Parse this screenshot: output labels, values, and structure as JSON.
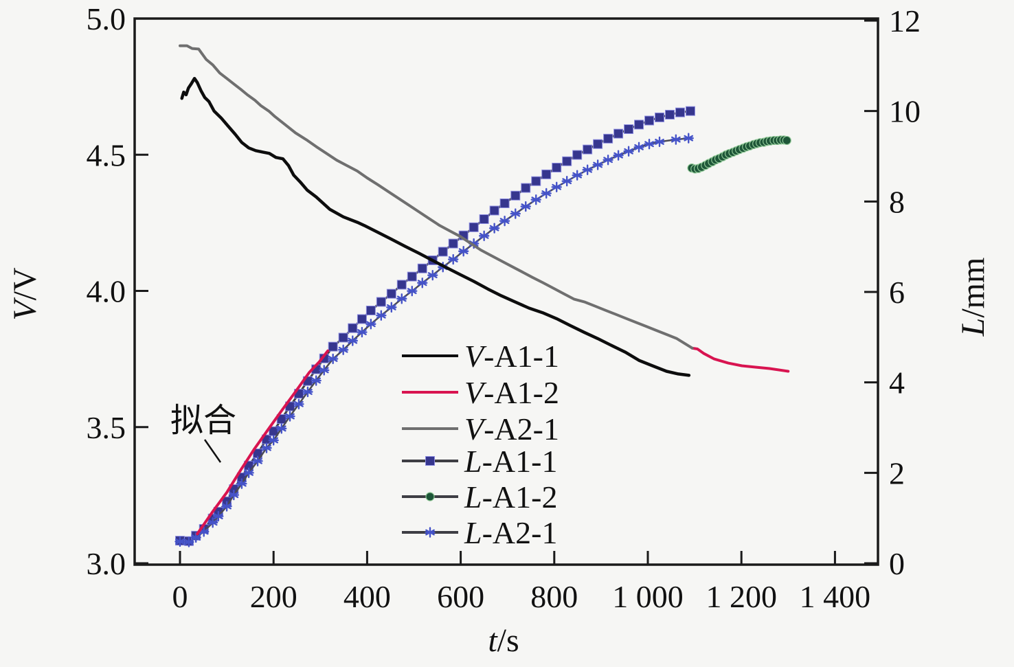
{
  "figure": {
    "background": "#f6f6f4",
    "frame_color": "#1a1a1a"
  },
  "chart_data": {
    "type": "line",
    "title": "",
    "x_axis": {
      "label_prefix": "t",
      "label_suffix": "/s",
      "range": [
        0,
        1400
      ],
      "tick_values": [
        0,
        200,
        400,
        600,
        800,
        1000,
        1200,
        1400
      ],
      "tick_labels": [
        "0",
        "200",
        "400",
        "600",
        "800",
        "1 000",
        "1 200",
        "1 400"
      ]
    },
    "y_axis_left": {
      "label_prefix": "V",
      "label_suffix": "/V",
      "range": [
        3.0,
        5.0
      ],
      "tick_values": [
        3.0,
        3.5,
        4.0,
        4.5,
        5.0
      ],
      "tick_labels": [
        "3.0",
        "3.5",
        "4.0",
        "4.5",
        "5.0"
      ]
    },
    "y_axis_right": {
      "label_prefix": "L",
      "label_suffix": "/mm",
      "range": [
        0,
        12
      ],
      "tick_values": [
        0,
        2,
        4,
        6,
        8,
        10,
        12
      ],
      "tick_labels": [
        "0",
        "2",
        "4",
        "6",
        "8",
        "10",
        "12"
      ]
    },
    "grid": false,
    "legend_position": "lower-center-inside",
    "annotation": {
      "text": "拟合",
      "points_to": "V-A1-2 linear fit segment"
    },
    "series": [
      {
        "name": "V-A1-1",
        "axis": "left",
        "color": "#0d0d0d",
        "marker": "none",
        "line_width": 4.5,
        "points": [
          [
            4,
            4.707
          ],
          [
            8,
            4.73
          ],
          [
            13,
            4.72
          ],
          [
            18,
            4.745
          ],
          [
            24,
            4.76
          ],
          [
            31,
            4.78
          ],
          [
            37,
            4.765
          ],
          [
            45,
            4.735
          ],
          [
            53,
            4.71
          ],
          [
            62,
            4.695
          ],
          [
            73,
            4.66
          ],
          [
            88,
            4.635
          ],
          [
            103,
            4.605
          ],
          [
            118,
            4.575
          ],
          [
            132,
            4.545
          ],
          [
            147,
            4.525
          ],
          [
            162,
            4.515
          ],
          [
            176,
            4.51
          ],
          [
            191,
            4.505
          ],
          [
            205,
            4.49
          ],
          [
            220,
            4.485
          ],
          [
            232,
            4.46
          ],
          [
            243,
            4.425
          ],
          [
            257,
            4.4
          ],
          [
            272,
            4.37
          ],
          [
            291,
            4.345
          ],
          [
            320,
            4.3
          ],
          [
            349,
            4.272
          ],
          [
            379,
            4.252
          ],
          [
            394,
            4.24
          ],
          [
            423,
            4.215
          ],
          [
            452,
            4.19
          ],
          [
            482,
            4.163
          ],
          [
            511,
            4.138
          ],
          [
            540,
            4.112
          ],
          [
            570,
            4.085
          ],
          [
            599,
            4.06
          ],
          [
            628,
            4.035
          ],
          [
            658,
            4.007
          ],
          [
            687,
            3.982
          ],
          [
            716,
            3.96
          ],
          [
            746,
            3.937
          ],
          [
            775,
            3.92
          ],
          [
            805,
            3.898
          ],
          [
            834,
            3.873
          ],
          [
            864,
            3.848
          ],
          [
            893,
            3.825
          ],
          [
            922,
            3.8
          ],
          [
            952,
            3.775
          ],
          [
            981,
            3.745
          ],
          [
            1010,
            3.725
          ],
          [
            1040,
            3.705
          ],
          [
            1065,
            3.695
          ],
          [
            1088,
            3.69
          ]
        ]
      },
      {
        "name": "V-A1-2",
        "axis": "left",
        "color": "#d81450",
        "marker": "none",
        "line_width": 4,
        "segments": [
          [
            [
              37,
              3.108
            ],
            [
              70,
              3.19
            ],
            [
              100,
              3.26
            ],
            [
              129,
              3.34
            ],
            [
              159,
              3.42
            ],
            [
              188,
              3.49
            ],
            [
              217,
              3.56
            ],
            [
              247,
              3.63
            ],
            [
              276,
              3.7
            ],
            [
              298,
              3.74
            ],
            [
              316,
              3.78
            ]
          ],
          [
            [
              1095,
              3.79
            ],
            [
              1106,
              3.787
            ],
            [
              1120,
              3.77
            ],
            [
              1142,
              3.75
            ],
            [
              1172,
              3.735
            ],
            [
              1201,
              3.725
            ],
            [
              1230,
              3.72
            ],
            [
              1260,
              3.715
            ],
            [
              1300,
              3.705
            ]
          ]
        ]
      },
      {
        "name": "V-A2-1",
        "axis": "left",
        "color": "#6f6f6f",
        "marker": "none",
        "line_width": 4,
        "points": [
          [
            0,
            4.9
          ],
          [
            15,
            4.9
          ],
          [
            26,
            4.89
          ],
          [
            40,
            4.888
          ],
          [
            56,
            4.85
          ],
          [
            70,
            4.83
          ],
          [
            85,
            4.8
          ],
          [
            100,
            4.78
          ],
          [
            115,
            4.76
          ],
          [
            130,
            4.74
          ],
          [
            144,
            4.72
          ],
          [
            160,
            4.7
          ],
          [
            173,
            4.68
          ],
          [
            190,
            4.66
          ],
          [
            203,
            4.64
          ],
          [
            225,
            4.61
          ],
          [
            247,
            4.58
          ],
          [
            270,
            4.555
          ],
          [
            291,
            4.53
          ],
          [
            313,
            4.505
          ],
          [
            335,
            4.48
          ],
          [
            357,
            4.46
          ],
          [
            379,
            4.44
          ],
          [
            400,
            4.415
          ],
          [
            423,
            4.39
          ],
          [
            445,
            4.365
          ],
          [
            467,
            4.34
          ],
          [
            489,
            4.315
          ],
          [
            511,
            4.29
          ],
          [
            533,
            4.265
          ],
          [
            555,
            4.24
          ],
          [
            577,
            4.22
          ],
          [
            599,
            4.2
          ],
          [
            621,
            4.175
          ],
          [
            643,
            4.15
          ],
          [
            665,
            4.13
          ],
          [
            687,
            4.11
          ],
          [
            709,
            4.09
          ],
          [
            731,
            4.07
          ],
          [
            753,
            4.05
          ],
          [
            776,
            4.03
          ],
          [
            798,
            4.01
          ],
          [
            820,
            3.99
          ],
          [
            842,
            3.97
          ],
          [
            864,
            3.96
          ],
          [
            886,
            3.945
          ],
          [
            908,
            3.93
          ],
          [
            930,
            3.915
          ],
          [
            952,
            3.9
          ],
          [
            974,
            3.885
          ],
          [
            996,
            3.87
          ],
          [
            1018,
            3.855
          ],
          [
            1040,
            3.84
          ],
          [
            1062,
            3.825
          ],
          [
            1095,
            3.79
          ]
        ]
      },
      {
        "name": "L-A1-1",
        "axis": "right",
        "color": "#3e3e44",
        "marker": "square",
        "marker_color": "#36368e",
        "line_width": 3,
        "points": [
          [
            0,
            0.5
          ],
          [
            19,
            0.49
          ],
          [
            34,
            0.61
          ],
          [
            51,
            0.76
          ],
          [
            70,
            0.99
          ],
          [
            82,
            1.14
          ],
          [
            100,
            1.37
          ],
          [
            115,
            1.64
          ],
          [
            132,
            1.9
          ],
          [
            147,
            2.16
          ],
          [
            166,
            2.43
          ],
          [
            185,
            2.74
          ],
          [
            200,
            2.92
          ],
          [
            217,
            3.19
          ],
          [
            235,
            3.47
          ],
          [
            254,
            3.75
          ],
          [
            273,
            4.03
          ],
          [
            291,
            4.29
          ],
          [
            308,
            4.53
          ],
          [
            327,
            4.79
          ],
          [
            349,
            4.99
          ],
          [
            369,
            5.2
          ],
          [
            389,
            5.4
          ],
          [
            408,
            5.59
          ],
          [
            430,
            5.78
          ],
          [
            452,
            5.96
          ],
          [
            474,
            6.16
          ],
          [
            496,
            6.34
          ],
          [
            518,
            6.52
          ],
          [
            540,
            6.7
          ],
          [
            562,
            6.89
          ],
          [
            584,
            7.07
          ],
          [
            606,
            7.25
          ],
          [
            628,
            7.43
          ],
          [
            650,
            7.61
          ],
          [
            672,
            7.8
          ],
          [
            694,
            7.96
          ],
          [
            717,
            8.13
          ],
          [
            739,
            8.3
          ],
          [
            761,
            8.45
          ],
          [
            783,
            8.6
          ],
          [
            805,
            8.75
          ],
          [
            827,
            8.89
          ],
          [
            849,
            9.03
          ],
          [
            871,
            9.15
          ],
          [
            893,
            9.27
          ],
          [
            915,
            9.39
          ],
          [
            937,
            9.5
          ],
          [
            959,
            9.6
          ],
          [
            981,
            9.7
          ],
          [
            1003,
            9.79
          ],
          [
            1025,
            9.86
          ],
          [
            1047,
            9.92
          ],
          [
            1069,
            9.97
          ],
          [
            1091,
            10.0
          ]
        ]
      },
      {
        "name": "L-A1-2",
        "axis": "right",
        "color": "#63ad6d",
        "marker": "circle",
        "marker_color": "#1e5638",
        "line_width": 5,
        "points": [
          [
            1094,
            8.74
          ],
          [
            1101,
            8.72
          ],
          [
            1108,
            8.73
          ],
          [
            1115,
            8.76
          ],
          [
            1123,
            8.8
          ],
          [
            1130,
            8.84
          ],
          [
            1138,
            8.88
          ],
          [
            1145,
            8.92
          ],
          [
            1152,
            8.95
          ],
          [
            1160,
            8.99
          ],
          [
            1167,
            9.03
          ],
          [
            1174,
            9.06
          ],
          [
            1182,
            9.09
          ],
          [
            1189,
            9.12
          ],
          [
            1196,
            9.15
          ],
          [
            1204,
            9.18
          ],
          [
            1211,
            9.21
          ],
          [
            1218,
            9.23
          ],
          [
            1226,
            9.26
          ],
          [
            1233,
            9.28
          ],
          [
            1240,
            9.3
          ],
          [
            1248,
            9.31
          ],
          [
            1255,
            9.33
          ],
          [
            1262,
            9.34
          ],
          [
            1270,
            9.35
          ],
          [
            1277,
            9.35
          ],
          [
            1284,
            9.36
          ],
          [
            1291,
            9.36
          ],
          [
            1297,
            9.35
          ]
        ]
      },
      {
        "name": "L-A2-1",
        "axis": "right",
        "color": "#4a4a55",
        "marker": "star",
        "marker_color": "#4553c8",
        "line_width": 2.5,
        "points": [
          [
            0,
            0.48
          ],
          [
            19,
            0.47
          ],
          [
            34,
            0.57
          ],
          [
            51,
            0.7
          ],
          [
            70,
            0.9
          ],
          [
            82,
            1.04
          ],
          [
            100,
            1.26
          ],
          [
            115,
            1.51
          ],
          [
            132,
            1.76
          ],
          [
            147,
            2.0
          ],
          [
            166,
            2.26
          ],
          [
            185,
            2.55
          ],
          [
            200,
            2.72
          ],
          [
            217,
            2.98
          ],
          [
            235,
            3.25
          ],
          [
            254,
            3.52
          ],
          [
            273,
            3.79
          ],
          [
            291,
            4.04
          ],
          [
            308,
            4.27
          ],
          [
            327,
            4.52
          ],
          [
            349,
            4.72
          ],
          [
            369,
            4.92
          ],
          [
            389,
            5.11
          ],
          [
            408,
            5.29
          ],
          [
            430,
            5.48
          ],
          [
            452,
            5.66
          ],
          [
            474,
            5.85
          ],
          [
            496,
            6.02
          ],
          [
            518,
            6.2
          ],
          [
            540,
            6.37
          ],
          [
            562,
            6.55
          ],
          [
            584,
            6.72
          ],
          [
            606,
            6.9
          ],
          [
            628,
            7.07
          ],
          [
            650,
            7.24
          ],
          [
            672,
            7.41
          ],
          [
            694,
            7.57
          ],
          [
            717,
            7.73
          ],
          [
            739,
            7.89
          ],
          [
            761,
            8.04
          ],
          [
            783,
            8.18
          ],
          [
            805,
            8.32
          ],
          [
            827,
            8.45
          ],
          [
            849,
            8.58
          ],
          [
            871,
            8.7
          ],
          [
            893,
            8.81
          ],
          [
            915,
            8.92
          ],
          [
            937,
            9.02
          ],
          [
            959,
            9.11
          ],
          [
            981,
            9.2
          ],
          [
            1003,
            9.27
          ],
          [
            1025,
            9.32
          ],
          [
            1060,
            9.37
          ],
          [
            1087,
            9.4
          ]
        ]
      }
    ],
    "legend": [
      {
        "prefix": "V",
        "suffix": "-A1-1",
        "series": "V-A1-1"
      },
      {
        "prefix": "V",
        "suffix": "-A1-2",
        "series": "V-A1-2"
      },
      {
        "prefix": "V",
        "suffix": "-A2-1",
        "series": "V-A2-1"
      },
      {
        "prefix": "L",
        "suffix": "-A1-1",
        "series": "L-A1-1"
      },
      {
        "prefix": "L",
        "suffix": "-A1-2",
        "series": "L-A1-2"
      },
      {
        "prefix": "L",
        "suffix": "-A2-1",
        "series": "L-A2-1"
      }
    ]
  }
}
